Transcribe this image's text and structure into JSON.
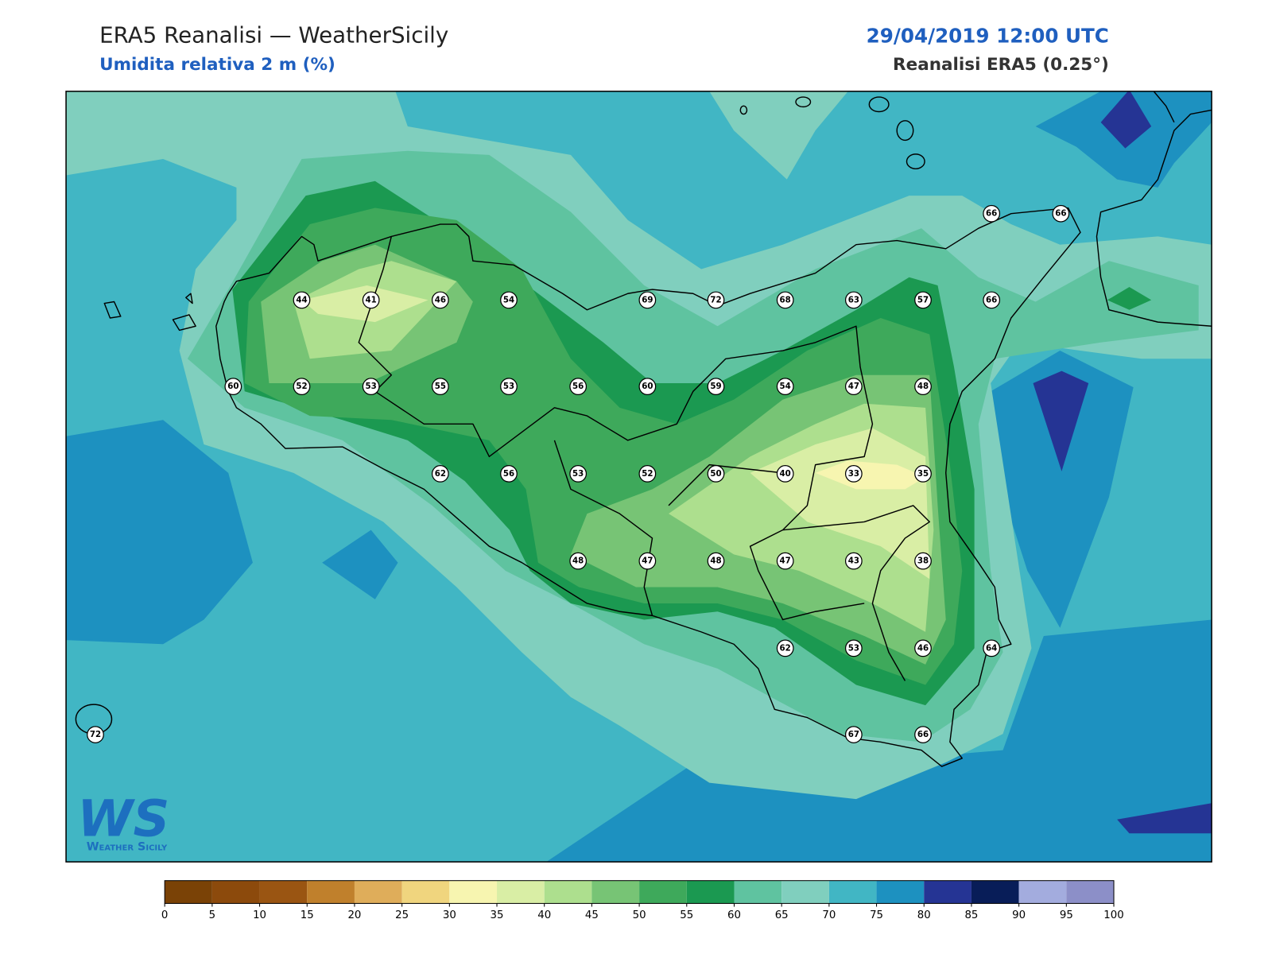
{
  "header": {
    "title": "ERA5 Reanalisi — WeatherSicily",
    "subtitle": "Umidita relativa 2 m (%)",
    "datetime": "29/04/2019 12:00 UTC",
    "source": "Reanalisi ERA5 (0.25°)"
  },
  "map": {
    "station_values": [
      66,
      66,
      44,
      41,
      46,
      54,
      69,
      72,
      68,
      63,
      57,
      66,
      60,
      52,
      53,
      55,
      53,
      56,
      60,
      59,
      54,
      47,
      48,
      62,
      56,
      53,
      52,
      50,
      40,
      33,
      35,
      48,
      47,
      48,
      47,
      43,
      38,
      62,
      53,
      46,
      64,
      72,
      67,
      66
    ]
  },
  "logo": {
    "mark": "WS",
    "name": "Weather Sicily"
  },
  "colorbar": {
    "colors": [
      "#7a4206",
      "#8c4a0c",
      "#9a5512",
      "#c0802c",
      "#dfad5a",
      "#f0d57e",
      "#f7f5b0",
      "#d9eea5",
      "#addf8e",
      "#77c475",
      "#3ea95b",
      "#1b9951",
      "#5fc3a0",
      "#80cfbe",
      "#41b6c4",
      "#1d91c0",
      "#253494",
      "#081d58",
      "#a3acde",
      "#8c8fc8"
    ],
    "ticks": [
      0,
      5,
      10,
      15,
      20,
      25,
      30,
      35,
      40,
      45,
      50,
      55,
      60,
      65,
      70,
      75,
      80,
      85,
      90,
      95,
      100
    ]
  }
}
